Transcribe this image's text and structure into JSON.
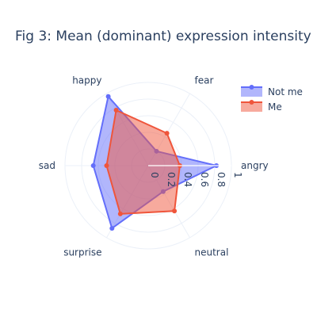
{
  "chart_data": {
    "type": "radar",
    "title": "Fig 3: Mean (dominant) expression intensity",
    "axes": [
      "angry",
      "fear",
      "happy",
      "sad",
      "surprise",
      "neutral"
    ],
    "radial_range": [
      0,
      1
    ],
    "radial_ticks": [
      "0",
      "0.2",
      "0.4",
      "0.6",
      "0.8",
      "1"
    ],
    "legend_position": "top-right",
    "series": [
      {
        "name": "Not me",
        "color": "#636efa",
        "values": [
          0.82,
          0.2,
          0.96,
          0.66,
          0.87,
          0.36
        ]
      },
      {
        "name": "Me",
        "color": "#ef553b",
        "values": [
          0.38,
          0.45,
          0.77,
          0.5,
          0.67,
          0.63
        ]
      }
    ]
  }
}
